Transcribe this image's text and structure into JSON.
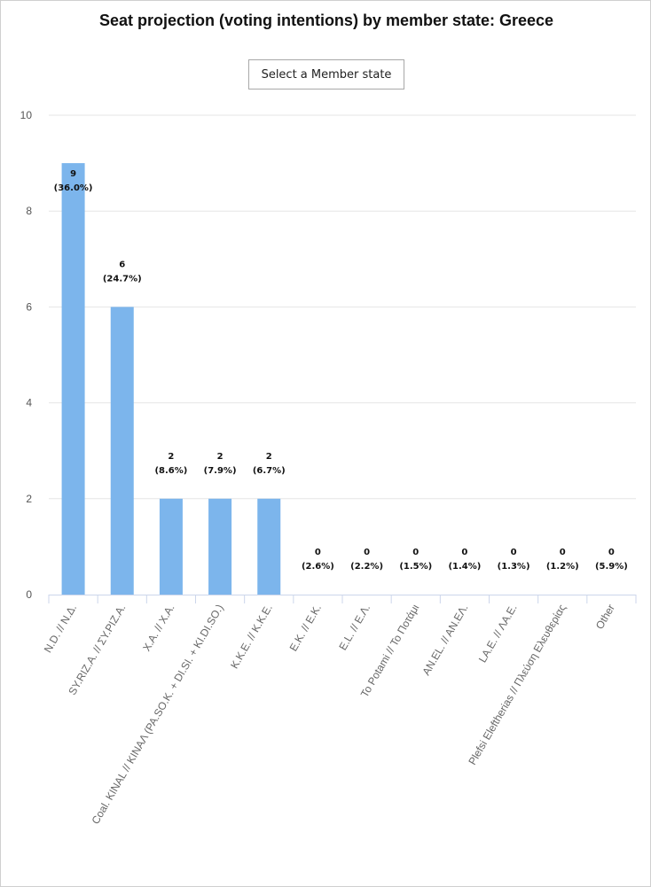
{
  "title": "Seat projection (voting intentions) by member state: Greece",
  "member_select": {
    "label": "Select a Member state"
  },
  "colors": {
    "bar": "#7cb5ec",
    "grid": "#e6e6e6",
    "axis": "#ccd6eb"
  },
  "chart_data": {
    "type": "bar",
    "categories": [
      "N.D. // N.Δ.",
      "SY.RIZ.A. // ΣY.PIZ.A.",
      "X.A. // X.A.",
      "Coal. KINAL // KINAΛ (PA.SO.K. + DI.SI. + KI.DI.SO.)",
      "K.K.E. // K.K.E.",
      "E.K. // E.K.",
      "E.L. // E.Λ.",
      "To Potami // To Ποτάμι",
      "AN.EL. // AN.EΛ.",
      "LA.E. // ΛA.E.",
      "Plefsi Eleftherias // Πλεύση Ελευθερίας",
      "Other"
    ],
    "values": [
      9,
      6,
      2,
      2,
      2,
      0,
      0,
      0,
      0,
      0,
      0,
      0
    ],
    "percent_labels": [
      "(36.0%)",
      "(24.7%)",
      "(8.6%)",
      "(7.9%)",
      "(6.7%)",
      "(2.6%)",
      "(2.2%)",
      "(1.5%)",
      "(1.4%)",
      "(1.3%)",
      "(1.2%)",
      "(5.9%)"
    ],
    "ylim": [
      0,
      10
    ],
    "yticks": [
      0,
      2,
      4,
      6,
      8,
      10
    ],
    "title": "Seat projection (voting intentions) by member state: Greece",
    "xlabel": "",
    "ylabel": "",
    "grid": true
  }
}
